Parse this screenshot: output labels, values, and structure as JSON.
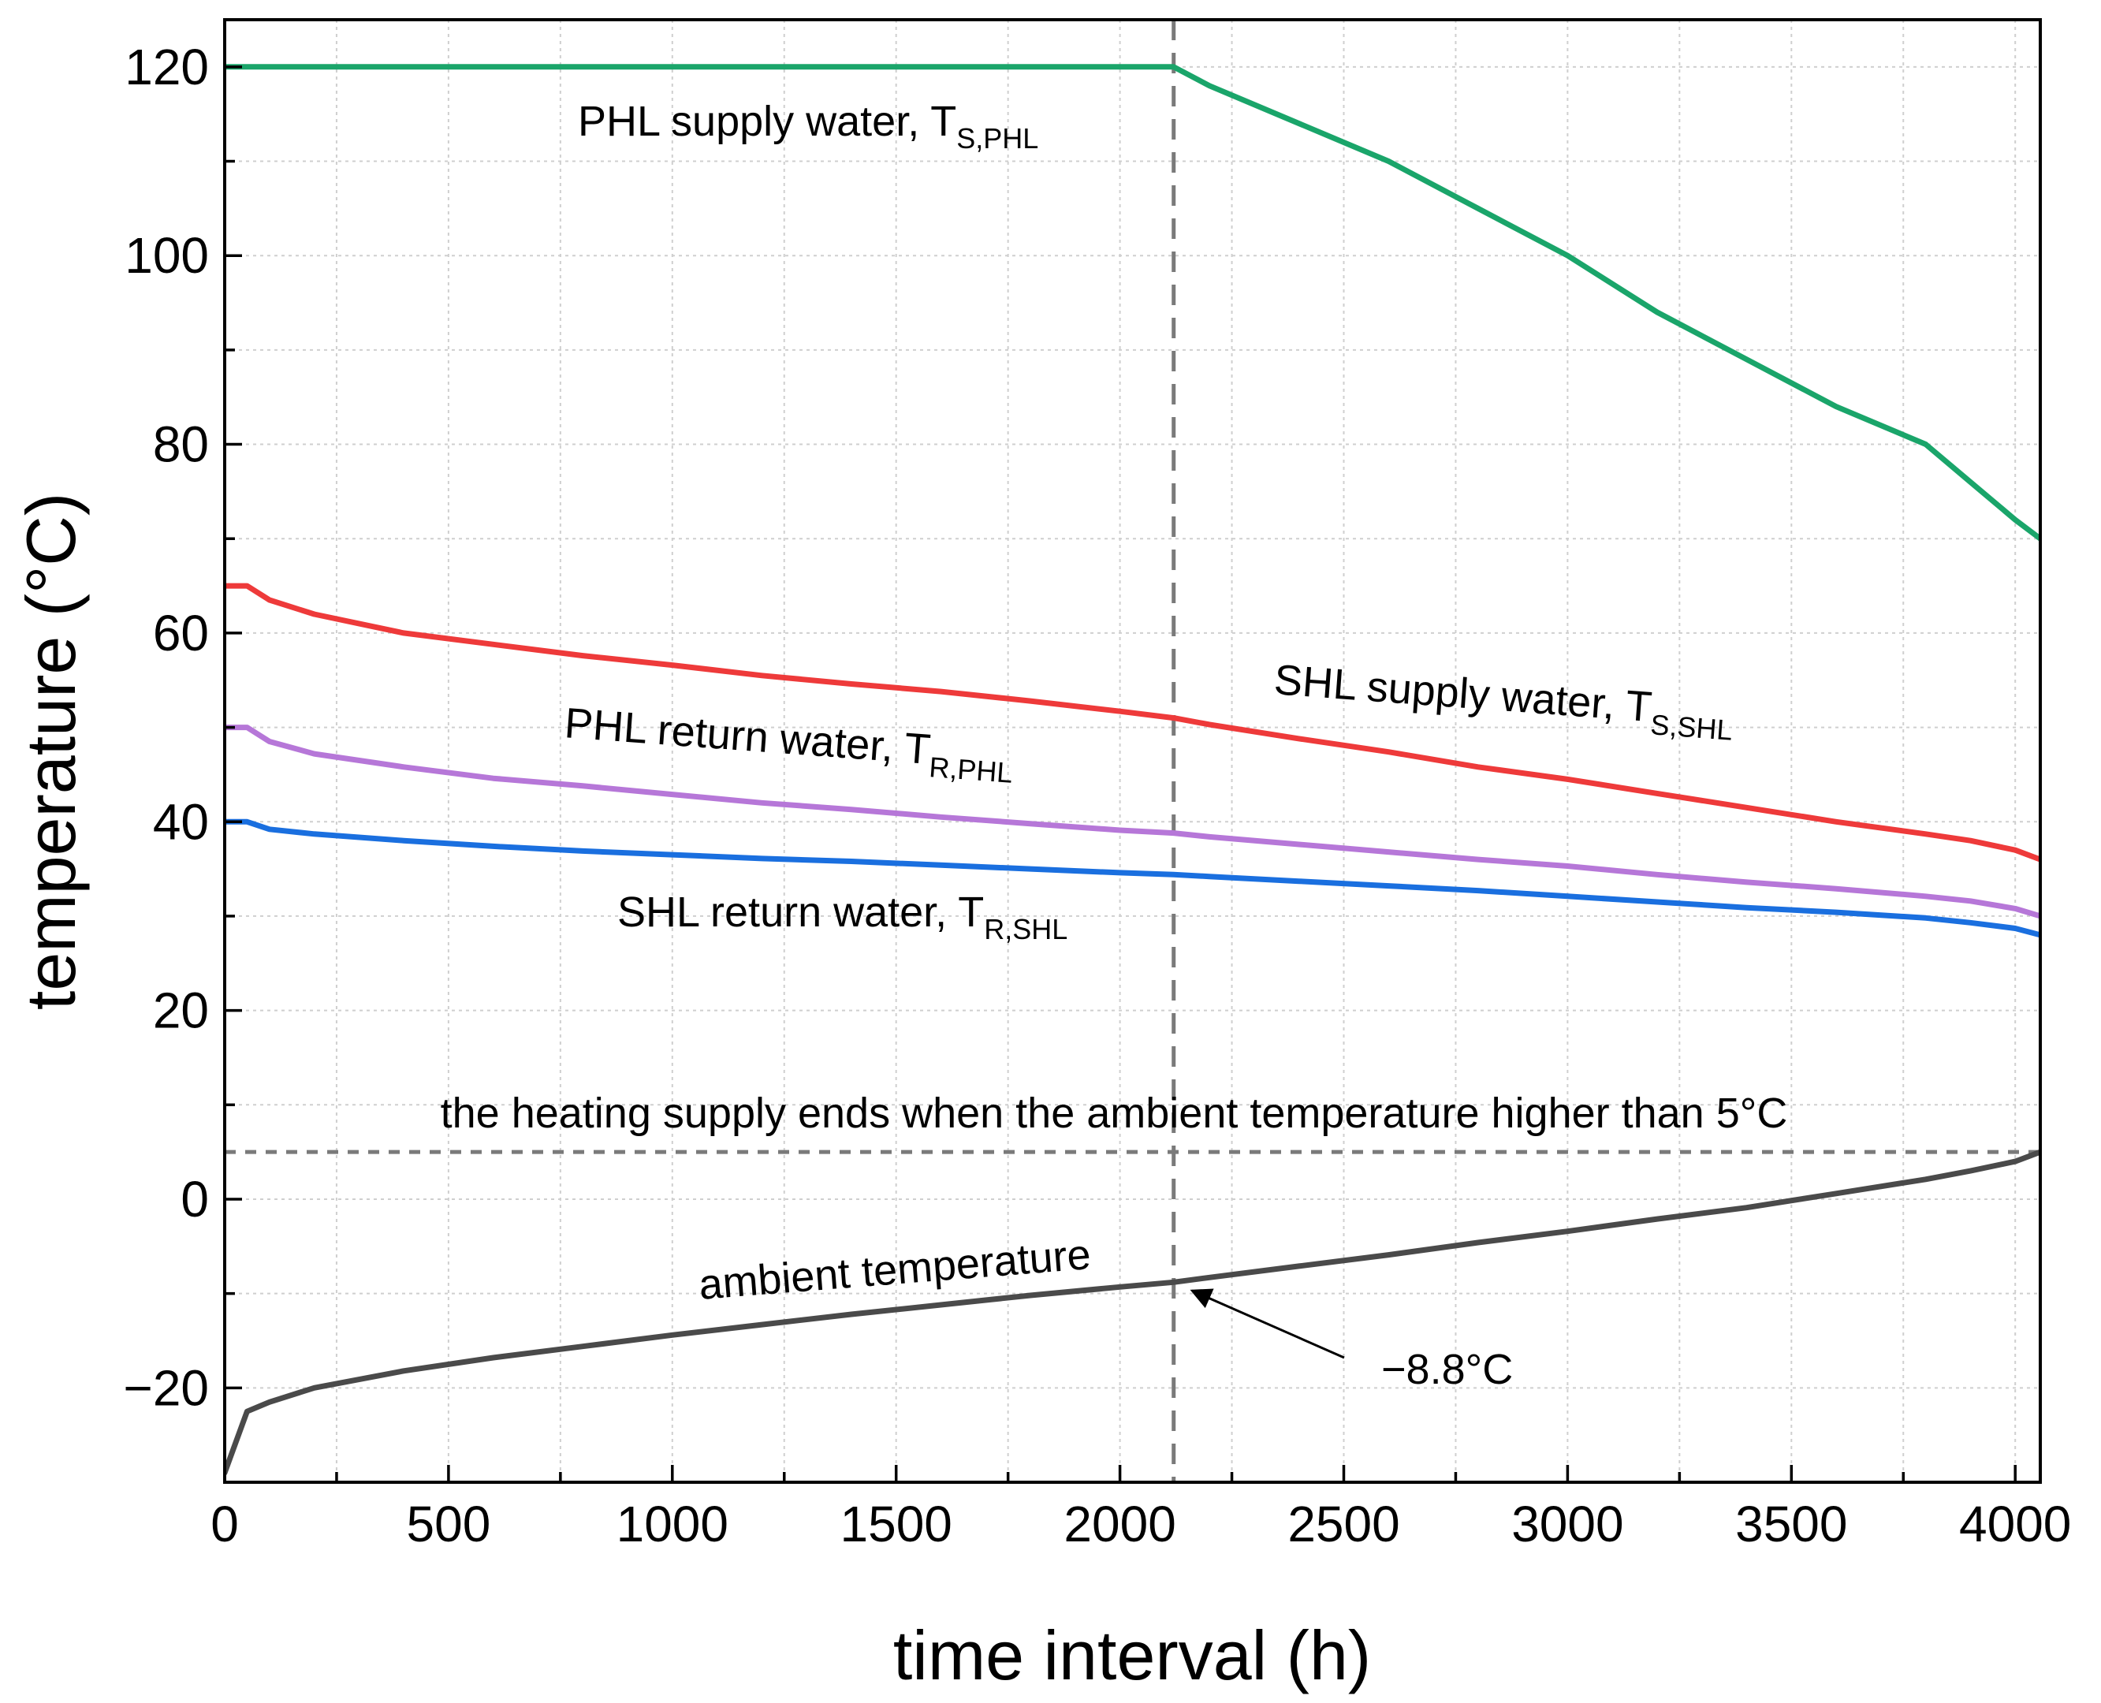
{
  "chart_data": {
    "type": "line",
    "title": "",
    "xlabel": "time interval (h)",
    "ylabel": "temperature (°C)",
    "xlim": [
      0,
      4056
    ],
    "ylim": [
      -30,
      125
    ],
    "grid": true,
    "x_ticks": [
      0,
      500,
      1000,
      1500,
      2000,
      2500,
      3000,
      3500,
      4000
    ],
    "x_tick_labels": [
      "0",
      "500",
      "1000",
      "1500",
      "2000",
      "2500",
      "3000",
      "3500",
      "4000"
    ],
    "y_ticks": [
      -20,
      0,
      20,
      40,
      60,
      80,
      100,
      120
    ],
    "y_tick_labels": [
      "−20",
      "0",
      "20",
      "40",
      "60",
      "80",
      "100",
      "120"
    ],
    "x": [
      0,
      50,
      100,
      200,
      400,
      600,
      800,
      1000,
      1200,
      1400,
      1600,
      1800,
      2000,
      2120,
      2200,
      2400,
      2600,
      2800,
      3000,
      3200,
      3400,
      3600,
      3800,
      3900,
      4000,
      4056
    ],
    "series": [
      {
        "name": "PHL supply water, T_S,PHL",
        "color": "#1aa56a",
        "values": [
          120,
          120,
          120,
          120,
          120,
          120,
          120,
          120,
          120,
          120,
          120,
          120,
          120,
          120,
          118,
          114,
          110,
          105,
          100,
          94,
          89,
          84,
          80,
          76,
          72,
          70
        ]
      },
      {
        "name": "SHL supply water, T_S,SHL",
        "color": "#ee3a3a",
        "values": [
          65,
          65,
          63.5,
          62,
          60,
          58.8,
          57.6,
          56.6,
          55.5,
          54.6,
          53.8,
          52.8,
          51.7,
          51,
          50.3,
          48.8,
          47.4,
          45.8,
          44.5,
          43,
          41.5,
          40,
          38.7,
          38,
          37,
          36
        ]
      },
      {
        "name": "PHL return water, T_R,PHL",
        "color": "#b677d8",
        "values": [
          50,
          50,
          48.5,
          47.2,
          45.8,
          44.6,
          43.8,
          42.9,
          42,
          41.3,
          40.5,
          39.8,
          39.1,
          38.8,
          38.4,
          37.6,
          36.8,
          36,
          35.3,
          34.4,
          33.6,
          32.9,
          32.1,
          31.6,
          30.8,
          30
        ]
      },
      {
        "name": "SHL return water, T_R,SHL",
        "color": "#1a6fdf",
        "values": [
          40,
          40,
          39.2,
          38.7,
          38,
          37.4,
          36.9,
          36.5,
          36.1,
          35.8,
          35.4,
          35,
          34.6,
          34.4,
          34.2,
          33.7,
          33.2,
          32.7,
          32.1,
          31.5,
          30.9,
          30.4,
          29.8,
          29.3,
          28.7,
          28
        ]
      },
      {
        "name": "ambient temperature",
        "color": "#4a4a4a",
        "values": [
          -29,
          -22.5,
          -21.5,
          -20,
          -18.2,
          -16.8,
          -15.6,
          -14.4,
          -13.3,
          -12.2,
          -11.2,
          -10.2,
          -9.3,
          -8.8,
          -8.3,
          -7.1,
          -5.9,
          -4.6,
          -3.4,
          -2.1,
          -0.9,
          0.6,
          2.1,
          3,
          4,
          5
        ]
      }
    ],
    "reference_lines": {
      "vertical_x": 2120,
      "horizontal_y": 5
    },
    "annotations": {
      "phl_supply": {
        "main": "PHL supply water, T",
        "sub": "S,PHL"
      },
      "shl_supply": {
        "main": "SHL supply water, T",
        "sub": "S,SHL"
      },
      "phl_return": {
        "main": "PHL return water, T",
        "sub": "R,PHL"
      },
      "shl_return": {
        "main": "SHL return water, T",
        "sub": "R,SHL"
      },
      "ambient": "ambient temperature",
      "heating_end": "the heating supply ends when the ambient temperature higher than 5°C",
      "point_label": "−8.8°C",
      "point": {
        "x": 2120,
        "y": -8.8
      }
    }
  }
}
